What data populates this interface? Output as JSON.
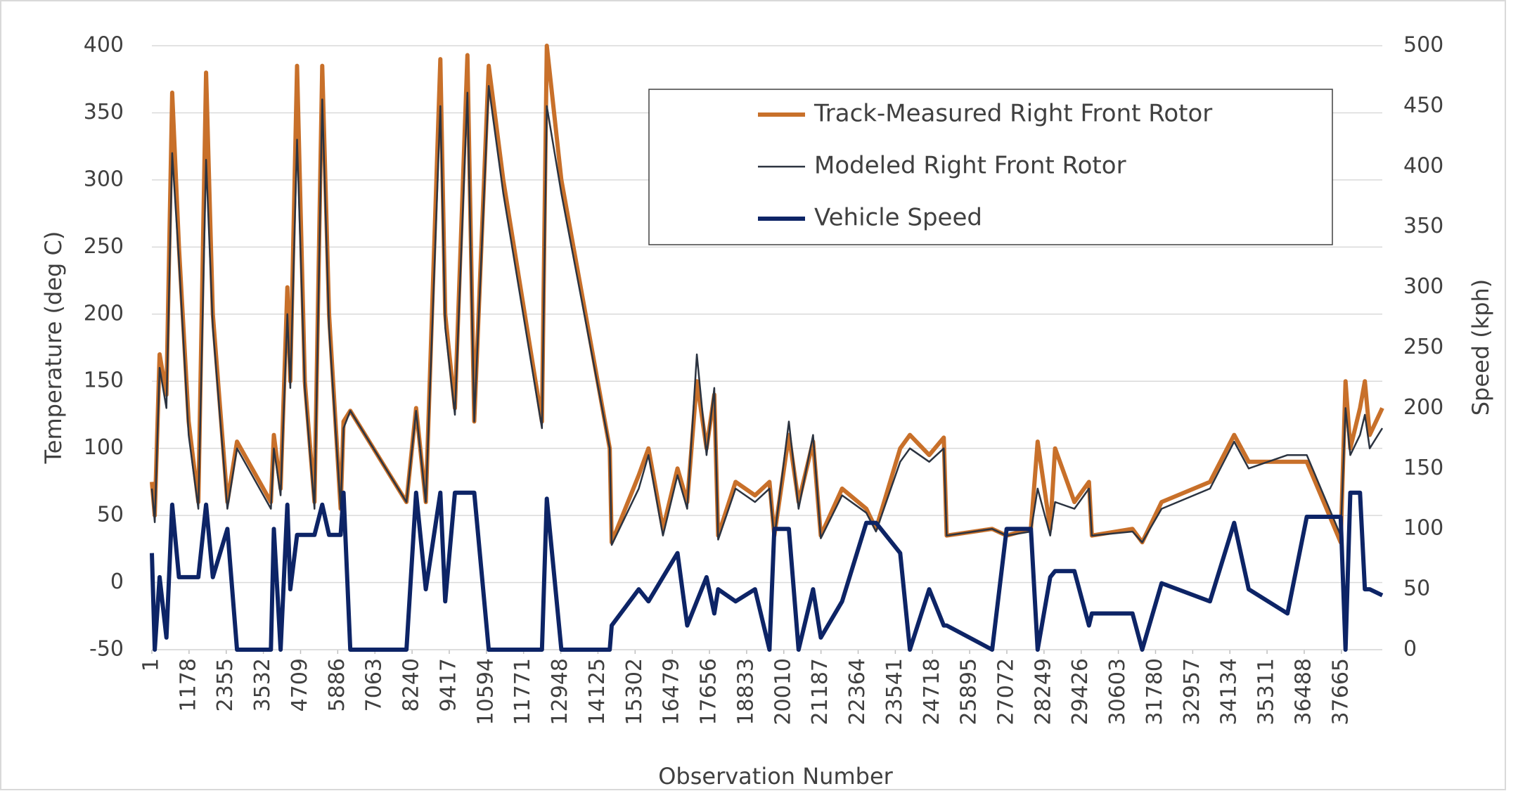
{
  "chart_data": {
    "type": "line",
    "x_label": "Observation Number",
    "y_label": "Temperature (deg C)",
    "y2_label": "Speed (kph)",
    "x": [
      1,
      93,
      246,
      461,
      645,
      859,
      1166,
      1472,
      1717,
      1932,
      2392,
      2698,
      3771,
      3863,
      4077,
      4292,
      4384,
      4599,
      4844,
      5150,
      5395,
      5610,
      5978,
      6070,
      6284,
      8062,
      8368,
      8675,
      9135,
      9288,
      9595,
      9993,
      10208,
      10667,
      11127,
      12353,
      12506,
      12966,
      14498,
      14560,
      15418,
      15725,
      16184,
      16644,
      16951,
      17257,
      17564,
      17809,
      17932,
      18484,
      19097,
      19557,
      19710,
      20170,
      20477,
      20936,
      21181,
      21856,
      22622,
      22928,
      23695,
      24001,
      24614,
      25074,
      25166,
      26607,
      27066,
      27833,
      28047,
      28446,
      28599,
      29212,
      29672,
      29764,
      31051,
      31358,
      31971,
      33503,
      34270,
      34730,
      35956,
      36569,
      37642,
      37795,
      37948,
      38255,
      38409,
      38562,
      38960
    ],
    "series": [
      {
        "name": "Track-Measured Right Front Rotor",
        "color": "#c8702a",
        "width": 6,
        "values": [
          75,
          50,
          170,
          140,
          365,
          250,
          120,
          60,
          380,
          200,
          60,
          105,
          60,
          110,
          70,
          220,
          150,
          385,
          150,
          60,
          385,
          200,
          55,
          120,
          128,
          60,
          130,
          60,
          390,
          200,
          130,
          393,
          120,
          385,
          300,
          120,
          400,
          300,
          100,
          30,
          80,
          100,
          40,
          85,
          60,
          150,
          100,
          140,
          35,
          75,
          65,
          75,
          35,
          110,
          60,
          105,
          35,
          70,
          55,
          40,
          100,
          110,
          95,
          108,
          35,
          40,
          35,
          40,
          105,
          40,
          100,
          60,
          75,
          35,
          40,
          30,
          60,
          75,
          110,
          90,
          90,
          90,
          30,
          150,
          100,
          130,
          150,
          110,
          130
        ]
      },
      {
        "name": "Modeled Right Front Rotor",
        "color": "#2b3340",
        "width": 2.5,
        "values": [
          70,
          45,
          160,
          130,
          320,
          240,
          110,
          55,
          315,
          190,
          55,
          100,
          55,
          100,
          65,
          200,
          145,
          330,
          145,
          55,
          360,
          190,
          55,
          115,
          128,
          60,
          128,
          60,
          355,
          190,
          125,
          365,
          120,
          370,
          290,
          115,
          355,
          290,
          100,
          28,
          70,
          95,
          35,
          80,
          55,
          170,
          95,
          145,
          32,
          70,
          60,
          70,
          33,
          120,
          55,
          110,
          33,
          65,
          52,
          38,
          90,
          100,
          90,
          100,
          35,
          40,
          35,
          38,
          70,
          35,
          60,
          55,
          70,
          35,
          38,
          30,
          55,
          70,
          105,
          85,
          95,
          95,
          35,
          130,
          95,
          110,
          125,
          100,
          115
        ]
      },
      {
        "name": "Vehicle Speed",
        "color": "#0d2466",
        "width": 6,
        "axis": "y2",
        "values": [
          80,
          0,
          60,
          10,
          120,
          60,
          60,
          60,
          120,
          60,
          100,
          0,
          0,
          100,
          0,
          120,
          50,
          95,
          95,
          95,
          120,
          95,
          95,
          130,
          0,
          0,
          130,
          50,
          130,
          40,
          130,
          130,
          130,
          0,
          0,
          0,
          125,
          0,
          0,
          20,
          50,
          40,
          60,
          80,
          20,
          40,
          60,
          30,
          50,
          40,
          50,
          0,
          100,
          100,
          0,
          50,
          10,
          40,
          105,
          105,
          80,
          0,
          50,
          20,
          20,
          0,
          100,
          100,
          0,
          60,
          65,
          65,
          20,
          30,
          30,
          0,
          55,
          40,
          105,
          50,
          30,
          110,
          110,
          0,
          130,
          130,
          50,
          50,
          45
        ]
      }
    ],
    "xlim": [
      1,
      38960
    ],
    "xticks": [
      1,
      1178,
      2355,
      3532,
      4709,
      5886,
      7063,
      8240,
      9417,
      10594,
      11771,
      12948,
      14125,
      15302,
      16479,
      17656,
      18833,
      20010,
      21187,
      22364,
      23541,
      24718,
      25895,
      27072,
      28249,
      29426,
      30603,
      31780,
      32957,
      34134,
      35311,
      36488,
      37665
    ],
    "ylim": [
      -50,
      400
    ],
    "yticks": [
      -50,
      0,
      50,
      100,
      150,
      200,
      250,
      300,
      350,
      400
    ],
    "y2lim": [
      0,
      500
    ],
    "y2ticks": [
      0,
      50,
      100,
      150,
      200,
      250,
      300,
      350,
      400,
      450,
      500
    ],
    "grid": true,
    "legend": "upper center"
  }
}
